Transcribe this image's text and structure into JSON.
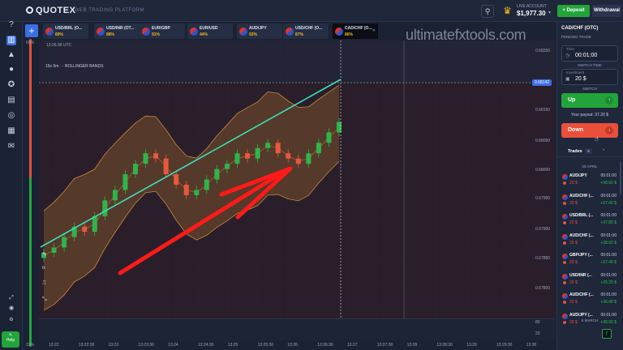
{
  "header": {
    "logo": "QUOTEX",
    "platform": "WEB TRADING PLATFORM",
    "account_type": "LIVE ACCOUNT",
    "balance": "$1,977.30",
    "deposit_label": "+ Deposit",
    "withdrawal_label": "Withdrawal"
  },
  "tabs": [
    {
      "name": "USD/BRL (O...",
      "pct": "89%"
    },
    {
      "name": "USD/INR (OT...",
      "pct": "88%"
    },
    {
      "name": "EUR/GBP",
      "pct": "91%"
    },
    {
      "name": "EUR/USD",
      "pct": "44%"
    },
    {
      "name": "AUD/JPY",
      "pct": "93%"
    },
    {
      "name": "USD/CHF (O...",
      "pct": "87%"
    },
    {
      "name": "CAD/CHF (O...",
      "pct": "86%"
    }
  ],
  "chart": {
    "time_label": "13:26:38 UTC",
    "tools_label": "15s  5m  ···  BOLLINGER BANDS",
    "watermark": "ultimatefxtools.com",
    "y_labels": [
      "0.68250",
      "0.68150",
      "0.68050",
      "0.68000",
      "0.67950",
      "0.67900",
      "0.67850",
      "0.67800"
    ],
    "current_price": "0.68142",
    "x_labels": [
      "13:22",
      "13:22:30",
      "13:23",
      "13:23:30",
      "13:24",
      "13:24:30",
      "13:25",
      "13:25:30",
      "13:26",
      "13:26:30",
      "13:27",
      "13:27:30",
      "13:28",
      "13:28:30",
      "13:29",
      "13:29:30",
      "13:30"
    ],
    "pct_top": "69%",
    "pct_bottom": "31%",
    "bottom_scale": [
      "80",
      "20"
    ]
  },
  "chart_data": {
    "type": "line",
    "title": "",
    "candles_open": [
      0.6788,
      0.6789,
      0.679,
      0.6792,
      0.6794,
      0.6793,
      0.6796,
      0.6799,
      0.6801,
      0.6804,
      0.6806,
      0.6808,
      0.6807,
      0.6804,
      0.6802,
      0.68,
      0.6801,
      0.6803,
      0.6805,
      0.6806,
      0.6808,
      0.6807,
      0.6809,
      0.681,
      0.6808,
      0.6807,
      0.6806,
      0.6808,
      0.681,
      0.6812
    ],
    "candles_close": [
      0.6789,
      0.679,
      0.6792,
      0.6794,
      0.6793,
      0.6796,
      0.6799,
      0.6801,
      0.6804,
      0.6806,
      0.6808,
      0.6807,
      0.6804,
      0.6802,
      0.68,
      0.6801,
      0.6803,
      0.6805,
      0.6806,
      0.6808,
      0.6807,
      0.6809,
      0.681,
      0.6808,
      0.6807,
      0.6806,
      0.6808,
      0.681,
      0.6812,
      0.6814
    ],
    "ylim": [
      0.6778,
      0.6828
    ]
  },
  "right_panel": {
    "asset": "CAD/CHF (OTC)",
    "pending": "PENDING TRADE",
    "time_label": "Time",
    "time_value": "00:01:00",
    "switch_time": "SWITCH TIME",
    "investment_label": "Investment",
    "investment_value": "20 $",
    "switch": "SWITCH",
    "up_label": "Up",
    "payout": "Your payout: 37.20 $",
    "down_label": "Down",
    "trades_label": "Trades",
    "trades_count": "8",
    "section_1": "25 APRIL",
    "section_2": "6 MARCH",
    "trades": [
      {
        "name": "AUD/JPY",
        "time": "00:01:00",
        "amount": "20 $",
        "profit": "+38.60 $"
      },
      {
        "name": "AUD/CHF (...",
        "time": "00:01:00",
        "amount": "20 $",
        "profit": "+37.40 $"
      },
      {
        "name": "USD/BRL (...",
        "time": "00:01:00",
        "amount": "20 $",
        "profit": "+37.80 $"
      },
      {
        "name": "AUD/CHF (...",
        "time": "00:01:00",
        "amount": "20 $",
        "profit": "+38.60 $"
      },
      {
        "name": "GBP/JPY (...",
        "time": "00:01:00",
        "amount": "20 $",
        "profit": "+37.40 $"
      },
      {
        "name": "USD/INR (...",
        "time": "00:01:00",
        "amount": "20 $",
        "profit": "+35.20 $"
      },
      {
        "name": "AUD/CHF (...",
        "time": "00:01:00",
        "amount": "20 $",
        "profit": "+36.40 $"
      },
      {
        "name": "AUD/JPY (...",
        "time": "00:01:00",
        "amount": "20 $",
        "profit": "+38.60 $"
      }
    ]
  },
  "nav": {
    "support_label": "Help"
  }
}
